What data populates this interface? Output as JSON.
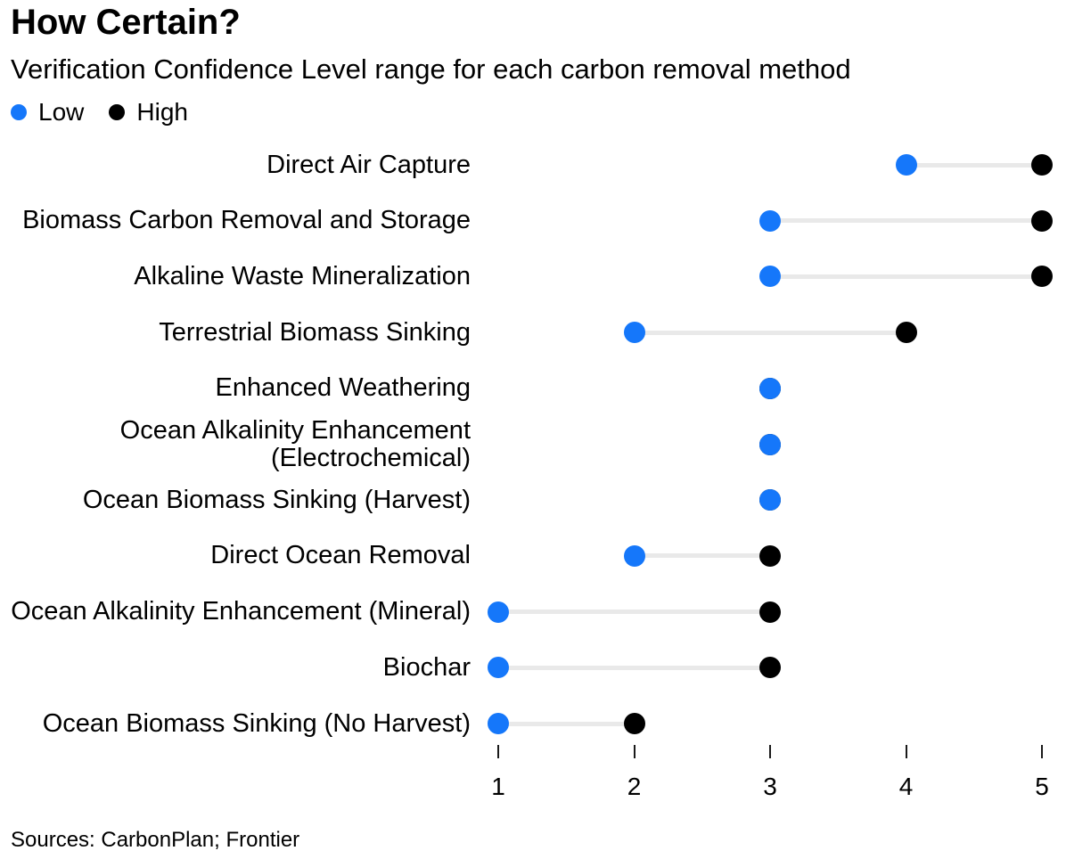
{
  "header": {
    "title": "How Certain?",
    "subtitle": "Verification Confidence Level range for each carbon removal method"
  },
  "legend": {
    "items": [
      {
        "label": "Low",
        "color": "#1577fa"
      },
      {
        "label": "High",
        "color": "#000000"
      }
    ]
  },
  "chart_data": {
    "type": "scatter",
    "variant": "dumbbell-range",
    "title": "How Certain?",
    "subtitle": "Verification Confidence Level range for each carbon removal method",
    "xlabel": "",
    "ylabel": "",
    "xlim": [
      1,
      5
    ],
    "x_ticks": [
      "1",
      "2",
      "3",
      "4",
      "5"
    ],
    "grid": false,
    "legend_position": "top-left",
    "categories": [
      "Direct Air Capture",
      "Biomass Carbon Removal and Storage",
      "Alkaline Waste Mineralization",
      "Terrestrial Biomass Sinking",
      "Enhanced Weathering",
      "Ocean Alkalinity Enhancement (Electrochemical)",
      "Ocean Biomass Sinking (Harvest)",
      "Direct Ocean Removal",
      "Ocean Alkalinity Enhancement (Mineral)",
      "Biochar",
      "Ocean Biomass Sinking (No Harvest)"
    ],
    "category_lines": [
      [
        "Direct Air Capture"
      ],
      [
        "Biomass Carbon Removal and Storage"
      ],
      [
        "Alkaline Waste Mineralization"
      ],
      [
        "Terrestrial Biomass Sinking"
      ],
      [
        "Enhanced Weathering"
      ],
      [
        "Ocean Alkalinity Enhancement",
        "(Electrochemical)"
      ],
      [
        "Ocean Biomass Sinking (Harvest)"
      ],
      [
        "Direct Ocean Removal"
      ],
      [
        "Ocean Alkalinity Enhancement (Mineral)"
      ],
      [
        "Biochar"
      ],
      [
        "Ocean Biomass Sinking (No Harvest)"
      ]
    ],
    "series": [
      {
        "name": "Low",
        "color": "#1577fa",
        "values": [
          4,
          3,
          3,
          2,
          3,
          3,
          3,
          2,
          1,
          1,
          1
        ]
      },
      {
        "name": "High",
        "color": "#000000",
        "values": [
          5,
          5,
          5,
          4,
          3,
          3,
          3,
          3,
          3,
          3,
          2
        ]
      }
    ]
  },
  "colors": {
    "accent_blue": "#1577fa",
    "dot_black": "#000000",
    "connector_gray": "#e9e9e9"
  },
  "footer": {
    "source": "Sources: CarbonPlan; Frontier"
  }
}
